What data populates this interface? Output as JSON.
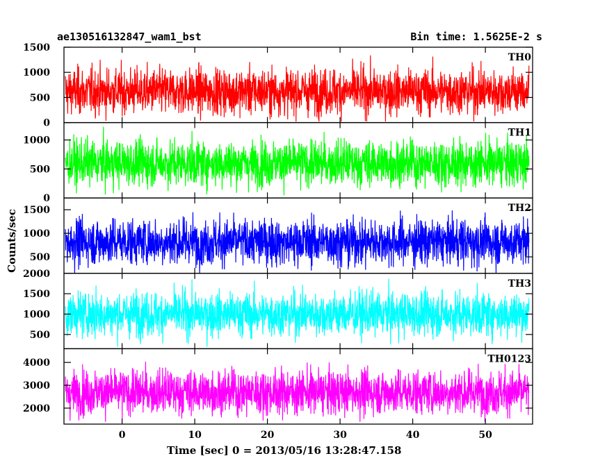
{
  "header": {
    "title": "ae130516132847_wam1_bst",
    "bin_time": "Bin time: 1.5625E-2 s"
  },
  "chart_data": {
    "type": "line",
    "xlabel": "Time [sec] 0 = 2013/05/16 13:28:47.158",
    "ylabel": "Counts/sec",
    "xlim": [
      -8,
      56.5
    ],
    "x_ticks": [
      0,
      10,
      20,
      30,
      40,
      50
    ],
    "x_range_of_data": [
      -7.8,
      56
    ],
    "panels": [
      {
        "name": "TH0",
        "color": "#ff0000",
        "ylim": [
          0,
          1500
        ],
        "yticks": [
          0,
          500,
          1000,
          1500
        ],
        "mean": 620,
        "low": 20,
        "high": 1500
      },
      {
        "name": "TH1",
        "color": "#00ff00",
        "ylim": [
          0,
          1300
        ],
        "yticks": [
          0,
          500,
          1000
        ],
        "mean": 600,
        "low": 30,
        "high": 1300
      },
      {
        "name": "TH2",
        "color": "#0000ff",
        "ylim": [
          150,
          1750
        ],
        "yticks": [
          500,
          1000,
          1500
        ],
        "mean": 820,
        "low": 160,
        "high": 1750
      },
      {
        "name": "TH3",
        "color": "#00ffff",
        "ylim": [
          150,
          2000
        ],
        "yticks": [
          500,
          1000,
          1500,
          2000
        ],
        "mean": 1000,
        "low": 200,
        "high": 1950
      },
      {
        "name": "TH0123",
        "color": "#ff00ff",
        "ylim": [
          1300,
          4600
        ],
        "yticks": [
          2000,
          3000,
          4000
        ],
        "mean": 2700,
        "low": 1400,
        "high": 4550
      }
    ]
  }
}
